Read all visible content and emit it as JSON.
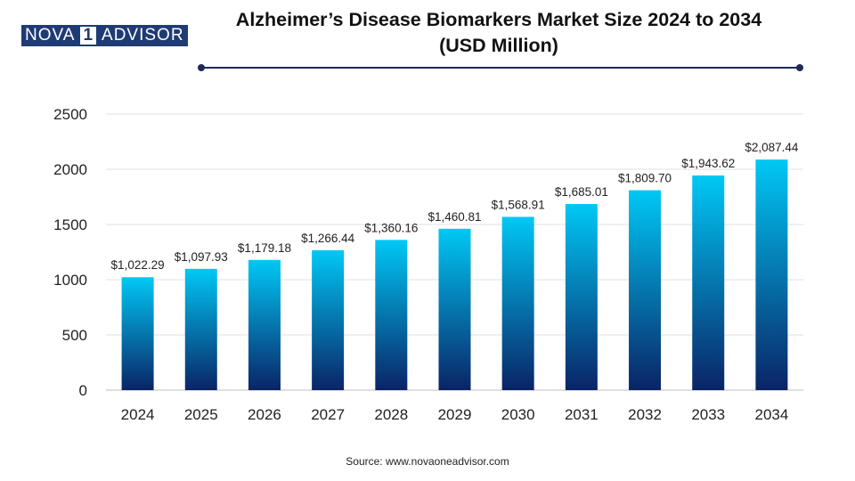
{
  "logo": {
    "part1": "NOVA",
    "mark": "1",
    "part2": "ADVISOR"
  },
  "header": {
    "title_line1": "Alzheimer’s Disease Biomarkers Market  Size 2024 to 2034",
    "title_line2": "(USD Million)"
  },
  "footer": {
    "source": "Source: www.novaoneadvisor.com"
  },
  "colors": {
    "bar_top": "#00c8f5",
    "bar_bottom": "#0a2466",
    "divider": "#1f2a5a",
    "grid": "#e2e2e2"
  },
  "chart_data": {
    "type": "bar",
    "title": "Alzheimer’s Disease Biomarkers Market  Size 2024 to 2034 (USD Million)",
    "categories": [
      "2024",
      "2025",
      "2026",
      "2027",
      "2028",
      "2029",
      "2030",
      "2031",
      "2032",
      "2033",
      "2034"
    ],
    "values": [
      1022.29,
      1097.93,
      1179.18,
      1266.44,
      1360.16,
      1460.81,
      1568.91,
      1685.01,
      1809.7,
      1943.62,
      2087.44
    ],
    "value_labels": [
      "$1,022.29",
      "$1,097.93",
      "$1,179.18",
      "$1,266.44",
      "$1,360.16",
      "$1,460.81",
      "$1,568.91",
      "$1,685.01",
      "$1,809.70",
      "$1,943.62",
      "$2,087.44"
    ],
    "ylim": [
      0,
      2500
    ],
    "yticks": [
      0,
      500,
      1000,
      1500,
      2000,
      2500
    ],
    "xlabel": "",
    "ylabel": "",
    "grid": true,
    "legend": "none"
  }
}
